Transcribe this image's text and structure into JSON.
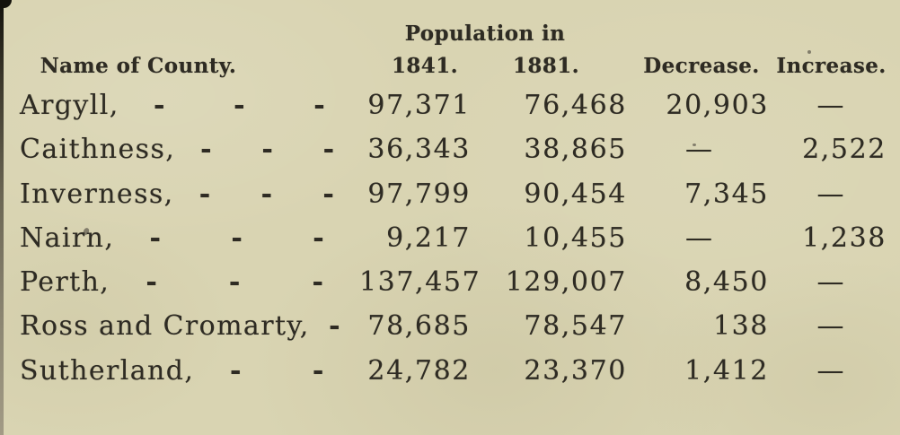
{
  "page": {
    "background_color": "#d9d4b2",
    "ink_color": "#2e2b23"
  },
  "table": {
    "group_header": "Population in",
    "columns": {
      "name": "Name of County.",
      "pop_1841": "1841.",
      "pop_1881": "1881.",
      "decrease": "Decrease.",
      "increase": "Increase."
    },
    "empty_marker": "—",
    "rows": [
      {
        "name": "Argyll,",
        "leaders": [
          "-",
          "-",
          "-"
        ],
        "pop_1841": "97,371",
        "pop_1881": "76,468",
        "decrease": "20,903",
        "increase": "—"
      },
      {
        "name": "Caithness,",
        "leaders": [
          "-",
          "-",
          "-"
        ],
        "pop_1841": "36,343",
        "pop_1881": "38,865",
        "decrease": "—",
        "increase": "2,522"
      },
      {
        "name": "Inverness,",
        "leaders": [
          "-",
          "-",
          "-"
        ],
        "pop_1841": "97,799",
        "pop_1881": "90,454",
        "decrease": "7,345",
        "increase": "—"
      },
      {
        "name": "Nairn,",
        "leaders": [
          "-",
          "-",
          "-"
        ],
        "pop_1841": "9,217",
        "pop_1881": "10,455",
        "decrease": "—",
        "increase": "1,238"
      },
      {
        "name": "Perth,",
        "leaders": [
          "-",
          "-",
          "-"
        ],
        "pop_1841": "137,457",
        "pop_1881": "129,007",
        "decrease": "8,450",
        "increase": "—"
      },
      {
        "name": "Ross and Cromarty,",
        "leaders": [
          "-"
        ],
        "pop_1841": "78,685",
        "pop_1881": "78,547",
        "decrease": "138",
        "increase": "—"
      },
      {
        "name": "Sutherland,",
        "leaders": [
          "-",
          "-"
        ],
        "pop_1841": "24,782",
        "pop_1881": "23,370",
        "decrease": "1,412",
        "increase": "—"
      }
    ]
  }
}
